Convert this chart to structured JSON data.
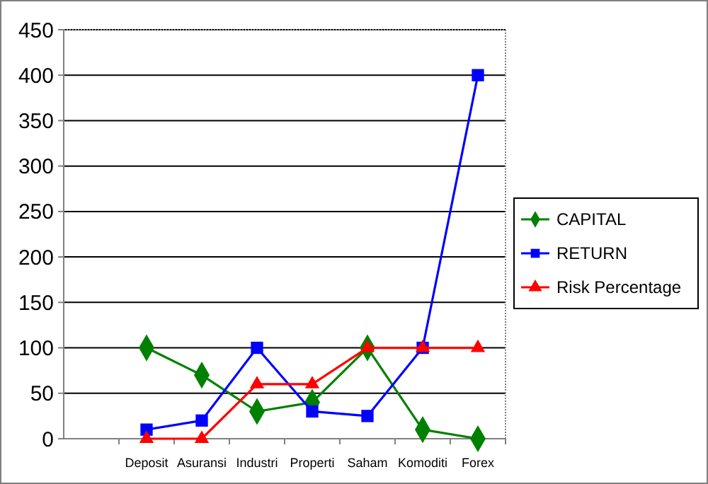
{
  "chart_data": {
    "type": "line",
    "categories": [
      null,
      "Deposit",
      "Asuransi",
      "Industri",
      "Properti",
      "Saham",
      "Komoditi",
      "Forex"
    ],
    "series": [
      {
        "name": "CAPITAL",
        "color": "#008000",
        "marker": "diamond",
        "values": [
          null,
          100,
          70,
          30,
          40,
          100,
          10,
          0
        ]
      },
      {
        "name": "RETURN",
        "color": "#0000ff",
        "marker": "square",
        "values": [
          null,
          10,
          20,
          100,
          30,
          25,
          100,
          400
        ]
      },
      {
        "name": "Risk Percentage",
        "color": "#ff0000",
        "marker": "triangle",
        "values": [
          null,
          0,
          0,
          60,
          60,
          100,
          100,
          100
        ]
      }
    ],
    "ylim": [
      0,
      450
    ],
    "yticks": [
      0,
      50,
      100,
      150,
      200,
      250,
      300,
      350,
      400,
      450
    ],
    "grid": "y",
    "legend": "right"
  }
}
